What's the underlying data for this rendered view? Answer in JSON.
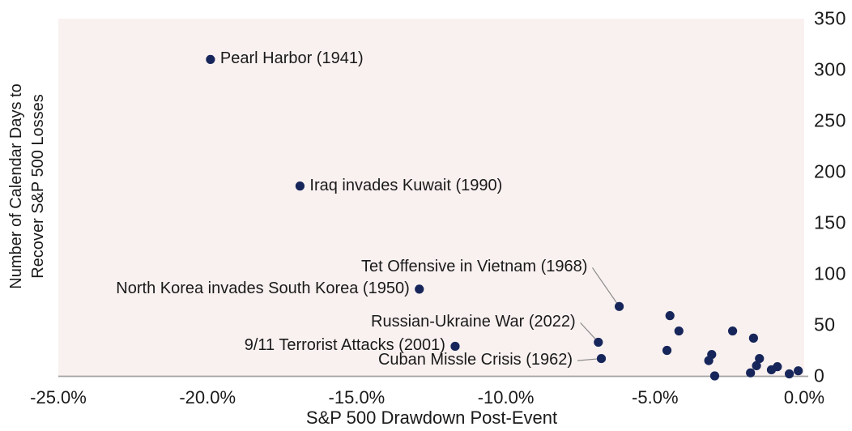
{
  "chart_data": {
    "type": "scatter",
    "title": "",
    "xlabel": "S&P 500 Drawdown Post-Event",
    "ylabel_lines": [
      "Number of Calendar Days to",
      "Recover S&P 500 Losses"
    ],
    "x_units": "percent drawdown",
    "y_units": "calendar days to recover",
    "xlim": [
      -25,
      0
    ],
    "ylim": [
      0,
      350
    ],
    "grid": false,
    "legend_position": "none",
    "y_axis_side": "right",
    "x_ticks": [
      {
        "value": -25,
        "label": "-25.0%"
      },
      {
        "value": -20,
        "label": "-20.0%"
      },
      {
        "value": -15,
        "label": "-15.0%"
      },
      {
        "value": -10,
        "label": "-10.0%"
      },
      {
        "value": -5,
        "label": "-5.0%"
      },
      {
        "value": 0,
        "label": "0.0%"
      }
    ],
    "y_ticks": [
      {
        "value": 0,
        "label": "0"
      },
      {
        "value": 50,
        "label": "50"
      },
      {
        "value": 100,
        "label": "100"
      },
      {
        "value": 150,
        "label": "150"
      },
      {
        "value": 200,
        "label": "200"
      },
      {
        "value": 250,
        "label": "250"
      },
      {
        "value": 300,
        "label": "300"
      },
      {
        "value": 350,
        "label": "350"
      }
    ],
    "labeled_points": [
      {
        "label": "Pearl Harbor (1941)",
        "x": -19.9,
        "y": 310,
        "side": "right"
      },
      {
        "label": "Iraq invades Kuwait (1990)",
        "x": -16.9,
        "y": 186,
        "side": "right"
      },
      {
        "label": "North Korea invades South Korea (1950)",
        "x": -12.9,
        "y": 85,
        "side": "left"
      },
      {
        "label": "Tet Offensive in Vietnam (1968)",
        "x": -6.2,
        "y": 68,
        "leader": true,
        "label_x": -7.1,
        "label_y": 106
      },
      {
        "label": "Russian-Ukraine War (2022)",
        "x": -6.9,
        "y": 33,
        "leader": true,
        "label_x": -7.5,
        "label_y": 52
      },
      {
        "label": "9/11 Terrorist Attacks (2001)",
        "x": -11.7,
        "y": 29,
        "side": "left"
      },
      {
        "label": "Cuban Missle Crisis (1962)",
        "x": -6.8,
        "y": 17,
        "leader": true,
        "label_x": -7.6,
        "label_y": 15
      }
    ],
    "unlabeled_points": [
      [
        -4.5,
        59
      ],
      [
        -4.2,
        44
      ],
      [
        -2.4,
        44
      ],
      [
        -1.7,
        37
      ],
      [
        -4.6,
        25
      ],
      [
        -3.1,
        21
      ],
      [
        -3.2,
        15
      ],
      [
        -3.0,
        0
      ],
      [
        -1.5,
        17
      ],
      [
        -1.6,
        10
      ],
      [
        -1.8,
        3
      ],
      [
        -1.1,
        6
      ],
      [
        -0.9,
        9
      ],
      [
        -0.5,
        2
      ],
      [
        -0.2,
        5
      ]
    ],
    "colors": {
      "point": "#17265a",
      "plot_bg": "#f9f1f0",
      "axis_line": "#a3a3a3",
      "leader_line": "#8a8a8a",
      "text": "#1a1a1a"
    }
  }
}
